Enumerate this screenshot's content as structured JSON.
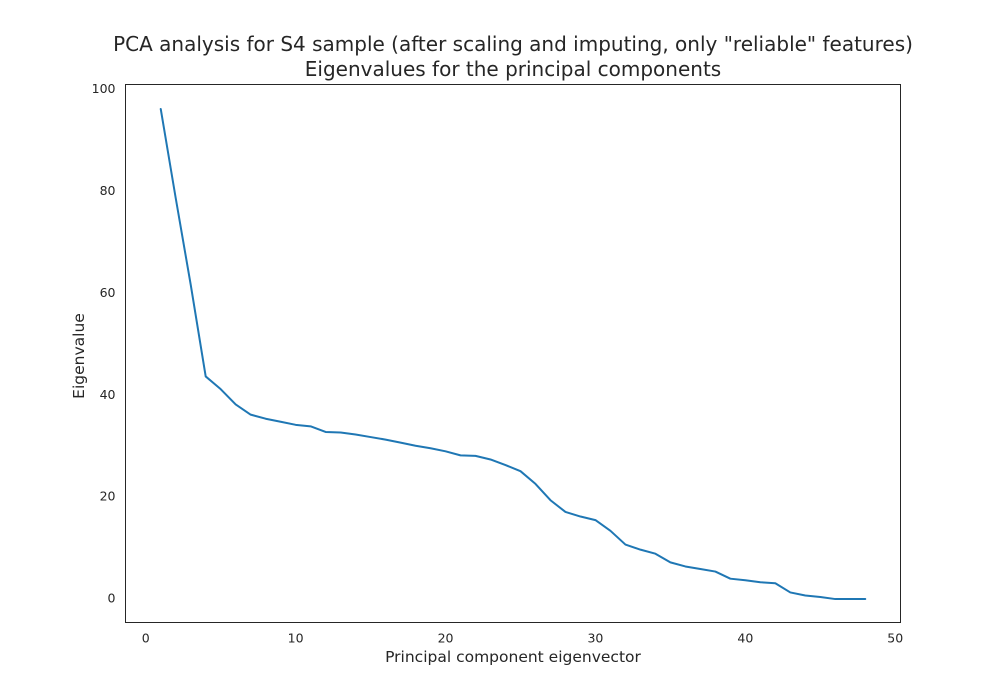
{
  "colors": {
    "background": "#ffffff",
    "series": "#1f77b4",
    "text": "#262626"
  },
  "chart_data": {
    "type": "line",
    "title": "PCA analysis for S4 sample (after scaling and imputing, only \"reliable\" features)",
    "subtitle": "Eigenvalues for the principal components",
    "xlabel": "Principal component eigenvector",
    "ylabel": "Eigenvalue",
    "xlim": [
      -1.35,
      50.35
    ],
    "ylim": [
      -4.8,
      100.8
    ],
    "x_ticks": [
      0,
      10,
      20,
      30,
      40,
      50
    ],
    "y_ticks": [
      0,
      20,
      40,
      60,
      80,
      100
    ],
    "grid": false,
    "legend": "none",
    "series": [
      {
        "x": [
          1,
          2,
          3,
          4,
          5,
          6,
          7,
          8,
          9,
          10,
          11,
          12,
          13,
          14,
          15,
          16,
          17,
          18,
          19,
          20,
          21,
          22,
          23,
          24,
          25,
          26,
          27,
          28,
          29,
          30,
          31,
          32,
          33,
          34,
          35,
          36,
          37,
          38,
          39,
          40,
          41,
          42,
          43,
          44,
          45,
          46,
          47,
          48
        ],
        "values": [
          96.0,
          78.5,
          61.5,
          43.5,
          41.0,
          38.0,
          36.0,
          35.2,
          34.6,
          34.0,
          33.7,
          32.6,
          32.5,
          32.1,
          31.6,
          31.1,
          30.5,
          29.9,
          29.4,
          28.8,
          28.0,
          27.9,
          27.2,
          26.1,
          24.9,
          22.4,
          19.2,
          16.9,
          16.0,
          15.3,
          13.2,
          10.5,
          9.5,
          8.7,
          7.0,
          6.2,
          5.7,
          5.2,
          3.8,
          3.5,
          3.1,
          2.9,
          1.1,
          0.5,
          0.2,
          -0.2,
          -0.2,
          -0.2
        ]
      }
    ]
  }
}
